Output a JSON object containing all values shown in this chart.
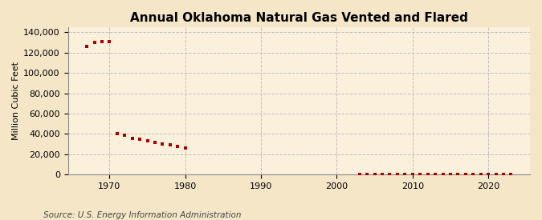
{
  "title": "Annual Oklahoma Natural Gas Vented and Flared",
  "ylabel": "Million Cubic Feet",
  "source_text": "Source: U.S. Energy Information Administration",
  "background_color": "#f5e6c8",
  "plot_background_color": "#faf0dc",
  "grid_color": "#bbbbbb",
  "marker_color": "#aa0000",
  "years": [
    1967,
    1968,
    1969,
    1970,
    1971,
    1972,
    1973,
    1974,
    1975,
    1976,
    1977,
    1978,
    1979,
    1980,
    2003,
    2004,
    2005,
    2006,
    2007,
    2008,
    2009,
    2010,
    2011,
    2012,
    2013,
    2014,
    2015,
    2016,
    2017,
    2018,
    2019,
    2020,
    2021,
    2022,
    2023
  ],
  "values": [
    126000,
    130000,
    131000,
    131000,
    40000,
    38500,
    36000,
    34500,
    33000,
    31500,
    30000,
    29000,
    27500,
    26000,
    500,
    500,
    500,
    500,
    500,
    500,
    500,
    500,
    500,
    500,
    500,
    500,
    500,
    500,
    500,
    500,
    500,
    500,
    500,
    500,
    500
  ],
  "ylim": [
    0,
    145000
  ],
  "xlim": [
    1964.5,
    2025.5
  ],
  "yticks": [
    0,
    20000,
    40000,
    60000,
    80000,
    100000,
    120000,
    140000
  ],
  "xticks": [
    1970,
    1980,
    1990,
    2000,
    2010,
    2020
  ],
  "title_fontsize": 11,
  "axis_fontsize": 8,
  "source_fontsize": 7.5
}
